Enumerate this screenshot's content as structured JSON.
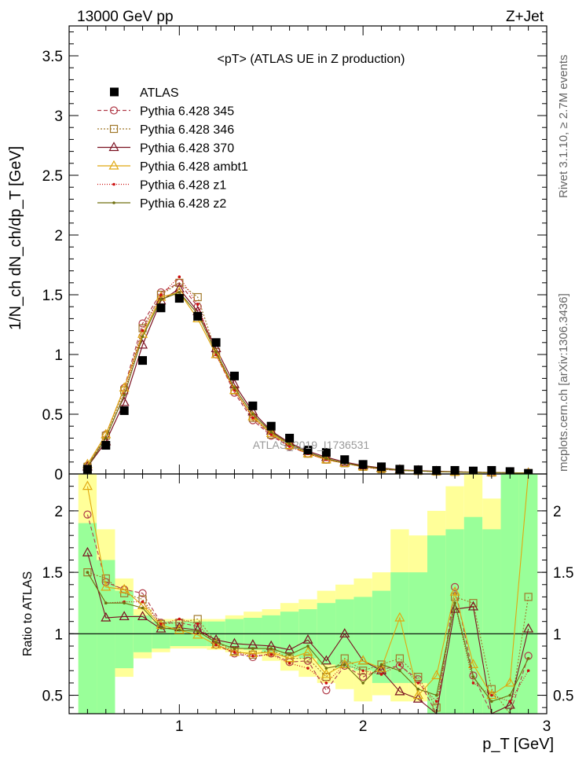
{
  "header": {
    "left": "13000 GeV pp",
    "right": "Z+Jet"
  },
  "side": {
    "rivet": "Rivet 3.1.10, ≥ 2.7M events",
    "mcplots": "mcplots.cern.ch [arXiv:1306.3436]"
  },
  "watermark": "ATLAS_2019_I1736531",
  "colors": {
    "data": "#000000",
    "p345": "#b03a48",
    "p346": "#a0782a",
    "p370": "#7a1020",
    "ambt1": "#e0a810",
    "z1": "#cc1010",
    "z2": "#707010",
    "band_inner": "#99ff99",
    "band_outer": "#ffff99"
  },
  "chart_data": [
    {
      "type": "line",
      "title": "<pT> (ATLAS UE in Z production)",
      "ylabel": "1/N_ch dN_ch/dp_T [GeV]",
      "xlim": [
        0.4,
        3.0
      ],
      "ylim": [
        0,
        3.75
      ],
      "xticks": [
        1,
        2,
        3
      ],
      "yticks": [
        0,
        0.5,
        1,
        1.5,
        2,
        2.5,
        3,
        3.5
      ],
      "x": [
        0.5,
        0.6,
        0.7,
        0.8,
        0.9,
        1.0,
        1.1,
        1.2,
        1.3,
        1.4,
        1.5,
        1.6,
        1.7,
        1.8,
        1.9,
        2.0,
        2.1,
        2.2,
        2.3,
        2.4,
        2.5,
        2.6,
        2.7,
        2.8,
        2.9
      ],
      "data": {
        "name": "ATLAS",
        "values": [
          0.04,
          0.24,
          0.53,
          0.95,
          1.39,
          1.47,
          1.32,
          1.1,
          0.82,
          0.57,
          0.4,
          0.3,
          0.2,
          0.18,
          0.12,
          0.08,
          0.06,
          0.04,
          0.035,
          0.03,
          0.03,
          0.025,
          0.03,
          0.02,
          0.005
        ]
      },
      "series": [
        {
          "name": "Pythia 6.428 345",
          "marker": "circle",
          "dash": "5,3",
          "color_key": "p345",
          "values": [
            0.07,
            0.33,
            0.72,
            1.26,
            1.52,
            1.6,
            1.4,
            1.0,
            0.68,
            0.45,
            0.32,
            0.23,
            0.17,
            0.12,
            0.09,
            0.06,
            0.04,
            0.03,
            0.025,
            0.02,
            0.018,
            0.015,
            0.012,
            0.01,
            0.008
          ]
        },
        {
          "name": "Pythia 6.428 346",
          "marker": "square",
          "dash": "2,2",
          "color_key": "p346",
          "values": [
            0.06,
            0.32,
            0.7,
            1.22,
            1.5,
            1.6,
            1.48,
            1.02,
            0.7,
            0.47,
            0.33,
            0.24,
            0.17,
            0.12,
            0.09,
            0.06,
            0.04,
            0.03,
            0.025,
            0.02,
            0.018,
            0.015,
            0.012,
            0.01,
            0.008
          ]
        },
        {
          "name": "Pythia 6.428 370",
          "marker": "triangle",
          "dash": "",
          "color_key": "p370",
          "values": [
            0.06,
            0.27,
            0.6,
            1.08,
            1.45,
            1.55,
            1.36,
            1.05,
            0.75,
            0.52,
            0.36,
            0.26,
            0.19,
            0.14,
            0.1,
            0.07,
            0.05,
            0.035,
            0.028,
            0.022,
            0.018,
            0.015,
            0.012,
            0.01,
            0.008
          ]
        },
        {
          "name": "Pythia 6.428 ambt1",
          "marker": "triangle",
          "dash": "",
          "color_key": "ambt1",
          "values": [
            0.08,
            0.33,
            0.72,
            1.17,
            1.48,
            1.52,
            1.3,
            1.0,
            0.7,
            0.48,
            0.34,
            0.24,
            0.17,
            0.12,
            0.09,
            0.06,
            0.045,
            0.032,
            0.025,
            0.02,
            0.016,
            0.013,
            0.011,
            0.009,
            0.007
          ]
        },
        {
          "name": "Pythia 6.428 z1",
          "marker": "dot",
          "dash": "1,2",
          "color_key": "z1",
          "values": [
            0.06,
            0.3,
            0.67,
            1.2,
            1.5,
            1.65,
            1.42,
            1.0,
            0.7,
            0.47,
            0.33,
            0.23,
            0.17,
            0.12,
            0.09,
            0.06,
            0.04,
            0.03,
            0.025,
            0.02,
            0.017,
            0.014,
            0.011,
            0.009,
            0.007
          ]
        },
        {
          "name": "Pythia 6.428 z2",
          "marker": "dot",
          "dash": "",
          "color_key": "z2",
          "values": [
            0.06,
            0.3,
            0.66,
            1.15,
            1.46,
            1.52,
            1.34,
            1.02,
            0.72,
            0.5,
            0.35,
            0.25,
            0.18,
            0.13,
            0.09,
            0.065,
            0.045,
            0.032,
            0.025,
            0.02,
            0.016,
            0.013,
            0.011,
            0.009,
            0.007
          ]
        }
      ]
    },
    {
      "type": "line",
      "xlabel": "p_T [GeV]",
      "ylabel": "Ratio to ATLAS",
      "xlim": [
        0.4,
        3.0
      ],
      "ylim": [
        0.35,
        2.3
      ],
      "xticks": [
        1,
        2,
        3
      ],
      "yticks": [
        0.5,
        1,
        1.5,
        2
      ],
      "x": [
        0.5,
        0.6,
        0.7,
        0.8,
        0.9,
        1.0,
        1.1,
        1.2,
        1.3,
        1.4,
        1.5,
        1.6,
        1.7,
        1.8,
        1.9,
        2.0,
        2.1,
        2.2,
        2.3,
        2.4,
        2.5,
        2.6,
        2.7,
        2.8,
        2.9
      ],
      "band_inner": {
        "low": [
          0.35,
          0.35,
          0.72,
          0.85,
          0.88,
          0.9,
          0.9,
          0.9,
          0.88,
          0.87,
          0.85,
          0.82,
          0.8,
          0.75,
          0.72,
          0.7,
          0.6,
          0.6,
          0.6,
          0.35,
          0.35,
          0.35,
          0.35,
          0.35,
          0.35
        ],
        "high": [
          1.9,
          1.6,
          1.35,
          1.15,
          1.1,
          1.1,
          1.1,
          1.1,
          1.12,
          1.13,
          1.15,
          1.18,
          1.2,
          1.25,
          1.28,
          1.3,
          1.35,
          1.5,
          1.5,
          1.8,
          1.85,
          1.95,
          1.85,
          2.3,
          2.3
        ]
      },
      "band_outer": {
        "low": [
          0.35,
          0.35,
          0.65,
          0.8,
          0.85,
          0.88,
          0.88,
          0.87,
          0.85,
          0.83,
          0.78,
          0.7,
          0.65,
          0.6,
          0.55,
          0.45,
          0.5,
          0.45,
          0.45,
          0.35,
          0.35,
          0.35,
          0.35,
          0.35,
          0.35
        ],
        "high": [
          2.3,
          1.85,
          1.45,
          1.2,
          1.12,
          1.12,
          1.12,
          1.12,
          1.15,
          1.18,
          1.2,
          1.25,
          1.28,
          1.35,
          1.4,
          1.45,
          1.5,
          1.85,
          1.8,
          2.0,
          2.2,
          2.3,
          2.1,
          2.3,
          2.3
        ]
      },
      "series": [
        {
          "name": "Pythia 6.428 345",
          "color_key": "p345",
          "marker": "circle",
          "dash": "5,3",
          "values": [
            1.97,
            1.42,
            1.36,
            1.33,
            1.09,
            1.09,
            1.06,
            0.91,
            0.84,
            0.81,
            0.84,
            0.77,
            0.78,
            0.54,
            0.74,
            0.65,
            0.71,
            0.74,
            0.63,
            0.35,
            1.38,
            0.66,
            0.35,
            0.35,
            0.82
          ]
        },
        {
          "name": "Pythia 6.428 346",
          "color_key": "p346",
          "marker": "square",
          "dash": "2,2",
          "values": [
            1.5,
            1.45,
            1.33,
            1.28,
            1.08,
            1.09,
            1.12,
            0.93,
            0.86,
            0.83,
            0.87,
            0.8,
            0.8,
            0.65,
            0.8,
            0.7,
            0.75,
            0.8,
            0.65,
            0.4,
            1.3,
            1.25,
            0.55,
            0.35,
            1.3
          ]
        },
        {
          "name": "Pythia 6.428 370",
          "color_key": "p370",
          "marker": "triangle",
          "dash": "",
          "values": [
            1.66,
            1.13,
            1.14,
            1.14,
            1.04,
            1.05,
            1.03,
            0.95,
            0.92,
            0.91,
            0.9,
            0.87,
            0.95,
            0.78,
            1.0,
            0.78,
            0.7,
            0.53,
            0.47,
            0.35,
            1.2,
            1.22,
            0.35,
            0.42,
            1.04
          ]
        },
        {
          "name": "Pythia 6.428 ambt1",
          "color_key": "ambt1",
          "marker": "triangle",
          "dash": "",
          "values": [
            2.2,
            1.38,
            1.36,
            1.23,
            1.07,
            1.03,
            0.99,
            0.91,
            0.85,
            0.84,
            0.85,
            0.8,
            0.85,
            0.67,
            0.75,
            0.78,
            0.72,
            1.13,
            0.5,
            0.66,
            1.34,
            0.75,
            0.5,
            0.6,
            2.3
          ]
        },
        {
          "name": "Pythia 6.428 z1",
          "color_key": "z1",
          "marker": "dot",
          "dash": "1,2",
          "values": [
            1.5,
            1.25,
            1.26,
            1.26,
            1.08,
            1.12,
            1.08,
            0.91,
            0.85,
            0.82,
            0.83,
            0.76,
            0.72,
            0.6,
            0.75,
            0.7,
            0.67,
            0.75,
            0.6,
            0.45,
            1.25,
            0.6,
            0.5,
            0.45,
            0.7
          ]
        },
        {
          "name": "Pythia 6.428 z2",
          "color_key": "z2",
          "marker": "dot",
          "dash": "",
          "values": [
            1.5,
            1.25,
            1.25,
            1.21,
            1.05,
            1.03,
            1.02,
            0.93,
            0.88,
            0.88,
            0.88,
            0.83,
            0.9,
            0.72,
            0.75,
            0.6,
            0.75,
            0.7,
            0.55,
            0.5,
            1.25,
            0.65,
            0.45,
            0.5,
            0.8
          ]
        }
      ]
    }
  ]
}
